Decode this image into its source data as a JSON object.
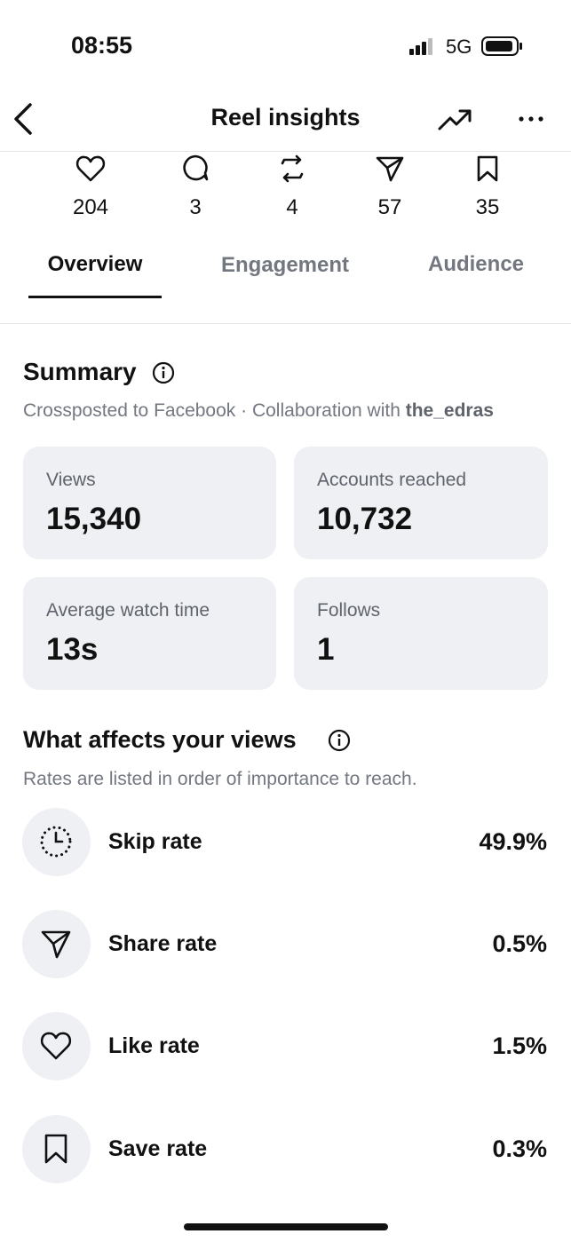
{
  "status_bar": {
    "time": "08:55",
    "network": "5G"
  },
  "header": {
    "title": "Reel insights"
  },
  "interaction_counts": [
    "204",
    "3",
    "4",
    "57",
    "35"
  ],
  "tabs": [
    "Overview",
    "Engagement",
    "Audience"
  ],
  "summary": {
    "title": "Summary",
    "subtitle": "Crossposted to Facebook · Collaboration with ",
    "collaborator": "the_edras",
    "cards": [
      {
        "label": "Views",
        "value": "15,340"
      },
      {
        "label": "Accounts reached",
        "value": "10,732"
      },
      {
        "label": "Average watch time",
        "value": "13s"
      },
      {
        "label": "Follows",
        "value": "1"
      }
    ]
  },
  "views_factors": {
    "title": "What affects your views",
    "subtitle": "Rates are listed in order of importance to reach.",
    "rows": [
      {
        "label": "Skip rate",
        "value": "49.9%"
      },
      {
        "label": "Share rate",
        "value": "0.5%"
      },
      {
        "label": "Like rate",
        "value": "1.5%"
      },
      {
        "label": "Save rate",
        "value": "0.3%"
      }
    ]
  }
}
